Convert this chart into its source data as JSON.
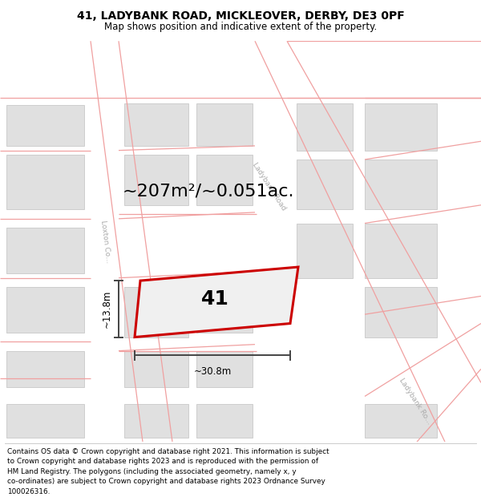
{
  "title_line1": "41, LADYBANK ROAD, MICKLEOVER, DERBY, DE3 0PF",
  "title_line2": "Map shows position and indicative extent of the property.",
  "footer_text": "Contains OS data © Crown copyright and database right 2021. This information is subject\nto Crown copyright and database rights 2023 and is reproduced with the permission of\nHM Land Registry. The polygons (including the associated geometry, namely x, y\nco-ordinates) are subject to Crown copyright and database rights 2023 Ordnance Survey\n100026316.",
  "area_label": "~207m²/~0.051ac.",
  "width_label": "~30.8m",
  "height_label": "~13.8m",
  "property_label": "41",
  "map_bg": "#f7f7f7",
  "road_color": "#f0a0a0",
  "road_lw": 0.9,
  "building_fill": "#e0e0e0",
  "building_edge": "#c8c8c8",
  "building_lw": 0.6,
  "property_fill": "#f0f0f0",
  "property_edge": "#cc0000",
  "property_lw": 2.2,
  "dim_color": "#444444",
  "road_label_color": "#aaaaaa",
  "title_fontsize": 10,
  "subtitle_fontsize": 8.5,
  "footer_fontsize": 6.4,
  "area_fontsize": 16,
  "prop_num_fontsize": 18
}
